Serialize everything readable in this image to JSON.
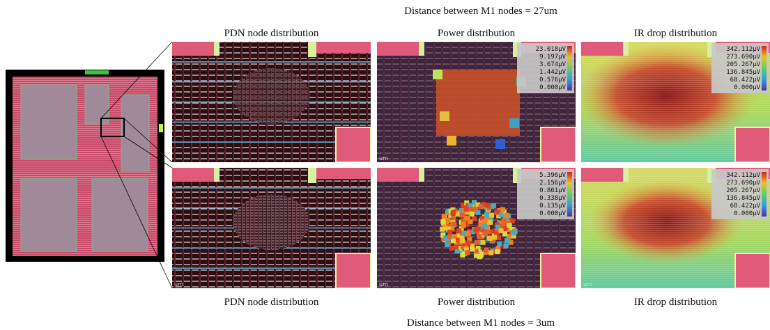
{
  "figure": {
    "rows": [
      {
        "caption": "Distance between M1 nodes = 27um",
        "panels": [
          {
            "title": "PDN node distribution"
          },
          {
            "title": "Power distribution",
            "legend": [
              "23.018µV",
              "9.197µV",
              "3.674µV",
              "1.442µV",
              "0.576µV",
              "0.000µV"
            ],
            "scale_label": "um"
          },
          {
            "title": "IR drop distribution",
            "legend": [
              "342.112µV",
              "273.690µV",
              "205.267µV",
              "136.845µV",
              "68.422µV",
              "0.000µV"
            ]
          }
        ]
      },
      {
        "caption": "Distance between M1 nodes = 3um",
        "panels": [
          {
            "title": "PDN node distribution",
            "scale_label": "um"
          },
          {
            "title": "Power distribution",
            "legend": [
              "5.396µV",
              "2.156µV",
              "0.861µV",
              "0.338µV",
              "0.135µV",
              "0.000µV"
            ],
            "scale_label": "um"
          },
          {
            "title": "IR drop distribution",
            "legend": [
              "342.112µV",
              "273.690µV",
              "205.267µV",
              "136.845µV",
              "68.422µV",
              "0.000µV"
            ],
            "scale_label": "um"
          }
        ]
      }
    ]
  }
}
